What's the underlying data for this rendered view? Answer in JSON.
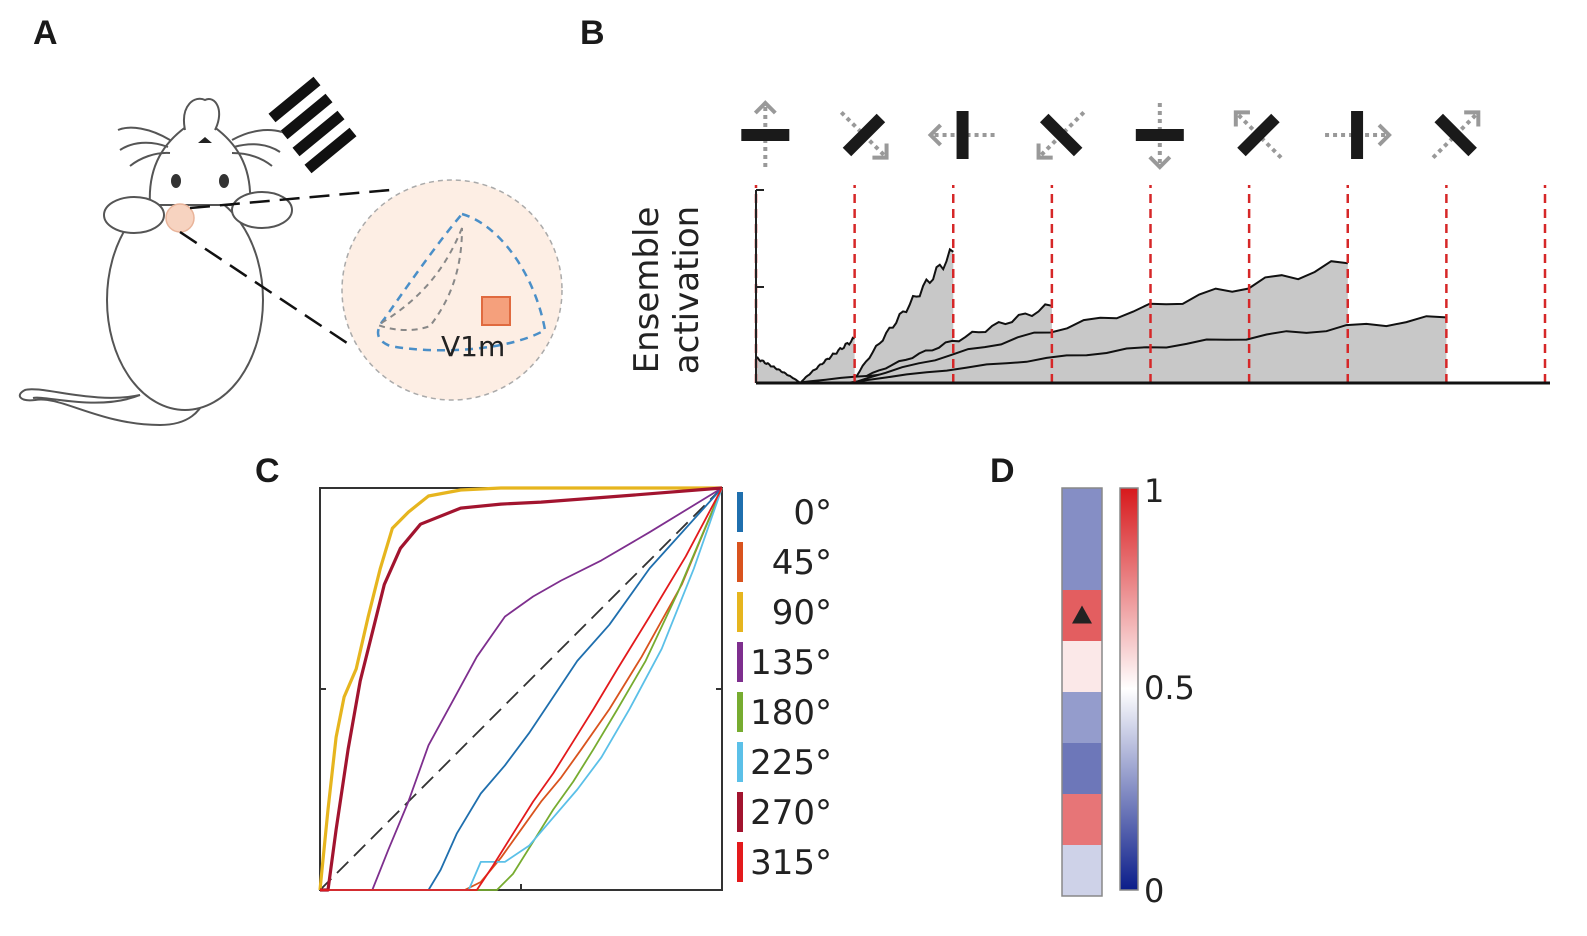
{
  "panels": {
    "a": "A",
    "b": "B",
    "c": "C",
    "d": "D"
  },
  "panel_a": {
    "region_label": "V1m"
  },
  "chart_data": [
    {
      "panel": "B",
      "type": "area",
      "ylabel_lines": [
        "Ensemble",
        "activation"
      ],
      "stimuli": [
        {
          "bar": "horizontal",
          "arrow": "up"
        },
        {
          "bar": "diagonal-anti",
          "arrow": "down-right"
        },
        {
          "bar": "vertical",
          "arrow": "left"
        },
        {
          "bar": "diagonal-main",
          "arrow": "down-left"
        },
        {
          "bar": "horizontal",
          "arrow": "down"
        },
        {
          "bar": "diagonal-anti",
          "arrow": "up-left"
        },
        {
          "bar": "vertical",
          "arrow": "right"
        },
        {
          "bar": "diagonal-main",
          "arrow": "up-right"
        }
      ],
      "onsets": [
        0,
        1,
        2,
        3,
        4,
        5,
        6,
        7,
        8
      ],
      "segments": [
        {
          "start": 0.0,
          "peak": 0.13,
          "end": 0.45
        },
        {
          "start": 1.0,
          "peak": 0.23,
          "end": 0.45
        },
        {
          "start": 2.0,
          "peak": 0.68,
          "end": 0.98
        },
        {
          "start": 3.0,
          "peak": 0.4,
          "end": 0.98
        },
        {
          "start": 4.0,
          "peak": 0.12,
          "end": 0.5
        },
        {
          "start": 5.0,
          "peak": 0.2,
          "end": 0.4
        },
        {
          "start": 6.0,
          "peak": 0.62,
          "end": 0.98
        },
        {
          "start": 7.0,
          "peak": 0.34,
          "end": 0.92
        }
      ],
      "ylim": [
        0,
        1
      ]
    },
    {
      "panel": "C",
      "type": "line",
      "xlim": [
        0,
        1
      ],
      "ylim": [
        0,
        1
      ],
      "diagonal_reference": true,
      "series": [
        {
          "name": "0°",
          "color": "#1f6fae",
          "x": [
            0,
            0.27,
            0.3,
            0.34,
            0.4,
            0.46,
            0.52,
            0.58,
            0.64,
            0.72,
            0.82,
            1
          ],
          "y": [
            0,
            0,
            0.05,
            0.14,
            0.24,
            0.31,
            0.39,
            0.48,
            0.57,
            0.66,
            0.8,
            1
          ]
        },
        {
          "name": "45°",
          "color": "#d9531e",
          "x": [
            0,
            0.36,
            0.4,
            0.45,
            0.5,
            0.55,
            0.6,
            0.65,
            0.72,
            0.8,
            0.9,
            1
          ],
          "y": [
            0,
            0,
            0.02,
            0.08,
            0.15,
            0.22,
            0.28,
            0.35,
            0.45,
            0.58,
            0.76,
            1
          ]
        },
        {
          "name": "90°",
          "color": "#e6b51e",
          "x": [
            0,
            0.005,
            0.02,
            0.04,
            0.06,
            0.09,
            0.12,
            0.15,
            0.18,
            0.22,
            0.27,
            0.35,
            0.45,
            0.6,
            0.8,
            1
          ],
          "y": [
            0,
            0.05,
            0.2,
            0.38,
            0.48,
            0.55,
            0.68,
            0.8,
            0.9,
            0.94,
            0.98,
            0.995,
            1,
            1,
            1,
            1
          ]
        },
        {
          "name": "135°",
          "color": "#7e2f8e",
          "x": [
            0,
            0.13,
            0.17,
            0.22,
            0.27,
            0.33,
            0.39,
            0.46,
            0.53,
            0.6,
            0.7,
            0.82,
            1
          ],
          "y": [
            0,
            0,
            0.1,
            0.22,
            0.36,
            0.47,
            0.58,
            0.68,
            0.73,
            0.77,
            0.82,
            0.89,
            1
          ]
        },
        {
          "name": "180°",
          "color": "#77ac30",
          "x": [
            0,
            0.44,
            0.48,
            0.53,
            0.58,
            0.63,
            0.68,
            0.74,
            0.81,
            0.89,
            1
          ],
          "y": [
            0,
            0,
            0.04,
            0.12,
            0.2,
            0.27,
            0.35,
            0.45,
            0.57,
            0.74,
            1
          ]
        },
        {
          "name": "225°",
          "color": "#5bc0e8",
          "x": [
            0,
            0.37,
            0.4,
            0.46,
            0.52,
            0.58,
            0.64,
            0.7,
            0.77,
            0.85,
            0.93,
            1
          ],
          "y": [
            0,
            0,
            0.07,
            0.07,
            0.11,
            0.18,
            0.25,
            0.33,
            0.45,
            0.6,
            0.8,
            1
          ]
        },
        {
          "name": "270°",
          "color": "#a2142f",
          "x": [
            0,
            0.02,
            0.04,
            0.07,
            0.1,
            0.13,
            0.16,
            0.2,
            0.25,
            0.35,
            0.45,
            0.55,
            0.75,
            1
          ],
          "y": [
            0,
            0,
            0.15,
            0.35,
            0.52,
            0.64,
            0.76,
            0.85,
            0.91,
            0.95,
            0.96,
            0.965,
            0.98,
            1
          ]
        },
        {
          "name": "315°",
          "color": "#e31a1c",
          "x": [
            0,
            0.39,
            0.43,
            0.48,
            0.53,
            0.58,
            0.63,
            0.68,
            0.74,
            0.82,
            0.91,
            1
          ],
          "y": [
            0,
            0,
            0.06,
            0.14,
            0.22,
            0.29,
            0.37,
            0.45,
            0.55,
            0.68,
            0.83,
            1
          ]
        }
      ]
    },
    {
      "panel": "D",
      "type": "heatmap",
      "values": [
        0.25,
        0.25,
        0.85,
        0.55,
        0.28,
        0.2,
        0.8,
        0.4
      ],
      "marked_index": 2,
      "colorbar": {
        "ticks": [
          "1",
          "0.5",
          "0"
        ],
        "range": [
          0,
          1
        ]
      }
    }
  ]
}
